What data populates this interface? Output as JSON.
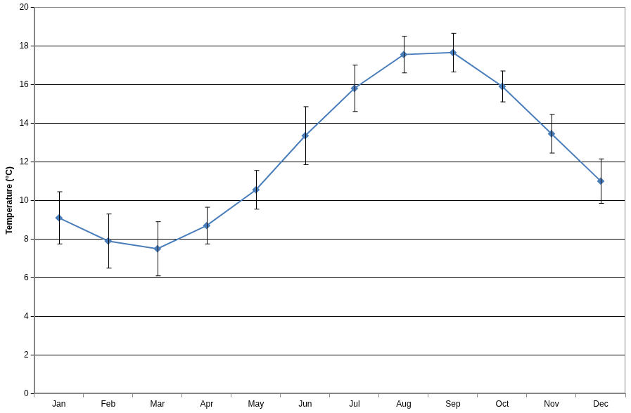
{
  "chart_data": {
    "type": "line",
    "y_label": "Temperature (°C)",
    "categories": [
      "Jan",
      "Feb",
      "Mar",
      "Apr",
      "May",
      "Jun",
      "Jul",
      "Aug",
      "Sep",
      "Oct",
      "Nov",
      "Dec"
    ],
    "values": [
      9.1,
      7.9,
      7.5,
      8.7,
      10.55,
      13.35,
      15.8,
      17.55,
      17.65,
      15.9,
      13.45,
      11.0
    ],
    "error": [
      1.35,
      1.4,
      1.4,
      0.95,
      1.0,
      1.5,
      1.2,
      0.95,
      1.0,
      0.8,
      1.0,
      1.15
    ],
    "color": "#4a7ebb",
    "marker": "diamond",
    "ylim": [
      0,
      20
    ],
    "yticks": [
      0,
      2,
      4,
      6,
      8,
      10,
      12,
      14,
      16,
      18,
      20
    ],
    "grid": true
  }
}
